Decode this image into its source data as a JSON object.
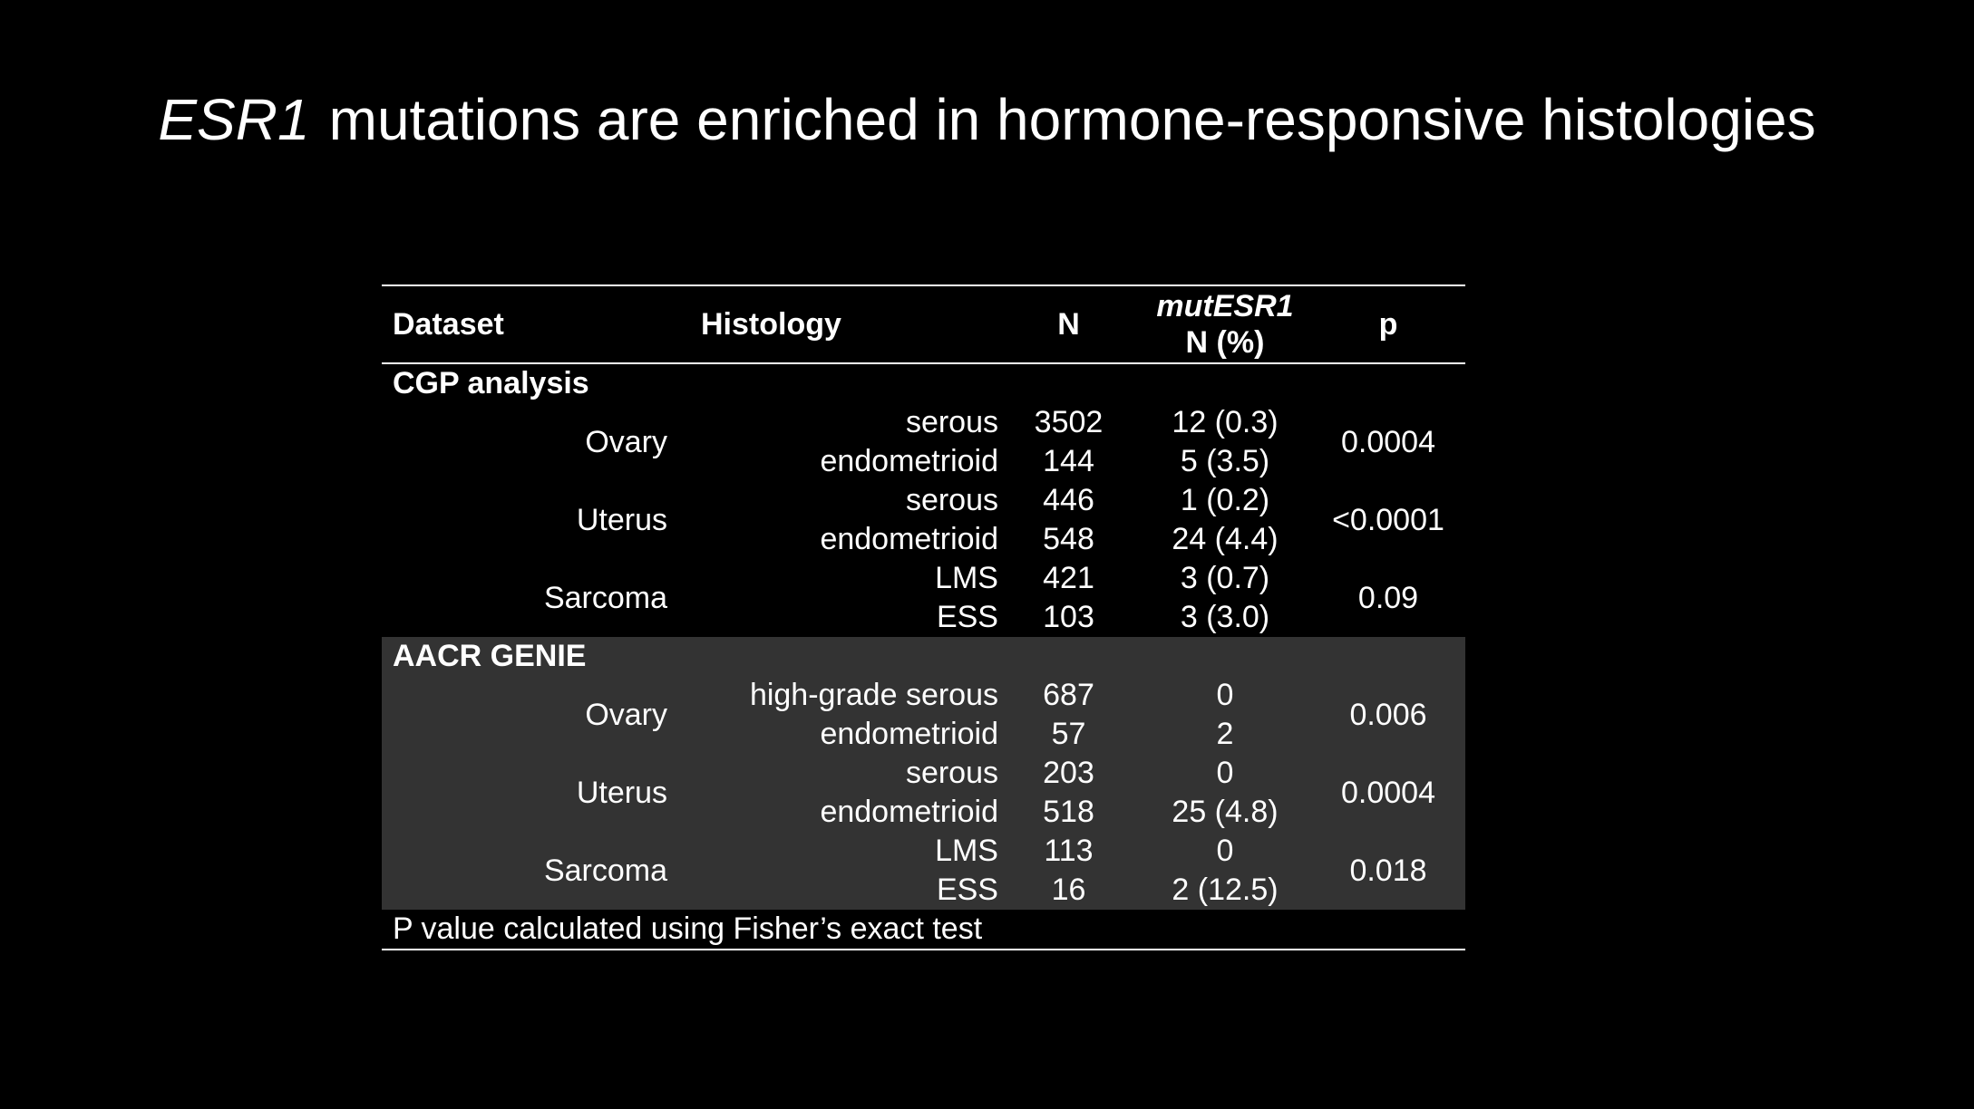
{
  "title": {
    "gene": "ESR1",
    "rest": "mutations are enriched in hormone-responsive histologies"
  },
  "table": {
    "headers": {
      "dataset": "Dataset",
      "histology": "Histology",
      "n": "N",
      "mut_line1": "mutESR1",
      "mut_line2": "N (%)",
      "p": "p"
    },
    "sections": [
      {
        "name": "CGP analysis",
        "groups": [
          {
            "site": "Ovary",
            "p": "0.0004",
            "rows": [
              {
                "histology": "serous",
                "n": "3502",
                "mut": "12 (0.3)"
              },
              {
                "histology": "endometrioid",
                "n": "144",
                "mut": "5 (3.5)"
              }
            ]
          },
          {
            "site": "Uterus",
            "p": "<0.0001",
            "rows": [
              {
                "histology": "serous",
                "n": "446",
                "mut": "1 (0.2)"
              },
              {
                "histology": "endometrioid",
                "n": "548",
                "mut": "24 (4.4)"
              }
            ]
          },
          {
            "site": "Sarcoma",
            "p": "0.09",
            "rows": [
              {
                "histology": "LMS",
                "n": "421",
                "mut": "3 (0.7)"
              },
              {
                "histology": "ESS",
                "n": "103",
                "mut": "3 (3.0)"
              }
            ]
          }
        ]
      },
      {
        "name": "AACR GENIE",
        "groups": [
          {
            "site": "Ovary",
            "p": "0.006",
            "rows": [
              {
                "histology": "high-grade serous",
                "n": "687",
                "mut": "0"
              },
              {
                "histology": "endometrioid",
                "n": "57",
                "mut": "2"
              }
            ]
          },
          {
            "site": "Uterus",
            "p": "0.0004",
            "rows": [
              {
                "histology": "serous",
                "n": "203",
                "mut": "0"
              },
              {
                "histology": "endometrioid",
                "n": "518",
                "mut": "25 (4.8)"
              }
            ]
          },
          {
            "site": "Sarcoma",
            "p": "0.018",
            "rows": [
              {
                "histology": "LMS",
                "n": "113",
                "mut": "0"
              },
              {
                "histology": "ESS",
                "n": "16",
                "mut": "2 (12.5)"
              }
            ]
          }
        ]
      }
    ],
    "footnote": "P value calculated using Fisher’s exact test"
  },
  "colors": {
    "background": "#000000",
    "text": "#ffffff",
    "shaded_section": "#333333"
  }
}
